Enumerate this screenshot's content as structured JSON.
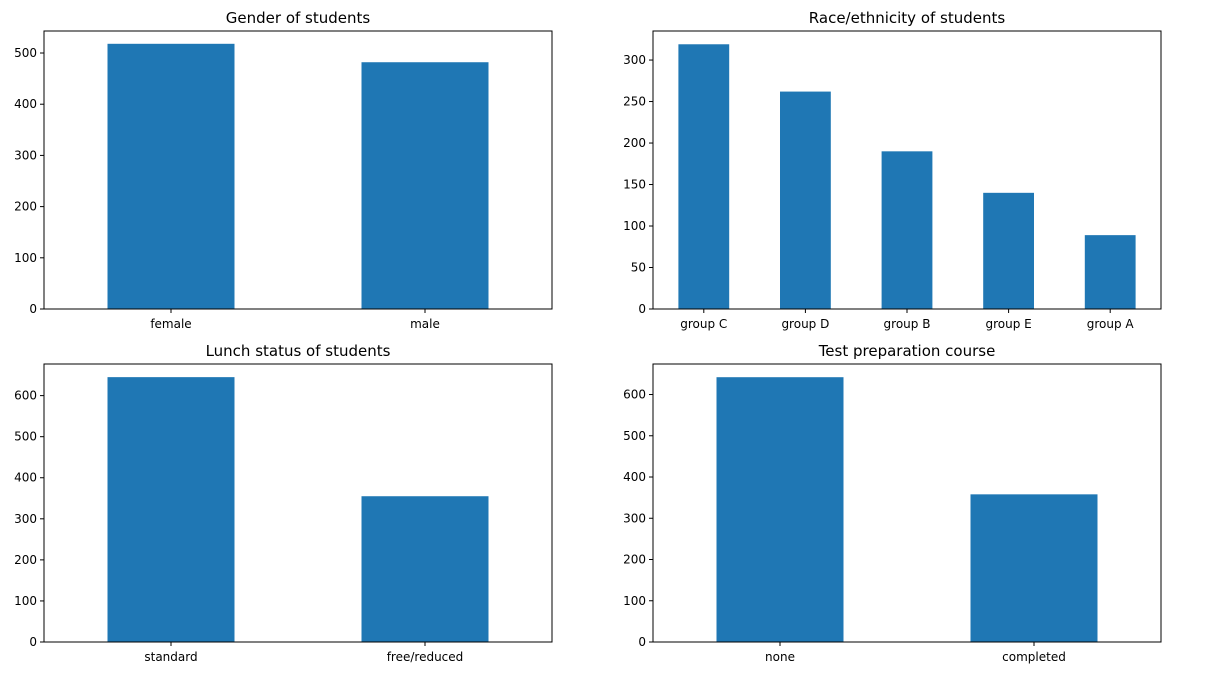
{
  "bar_color": "#1f77b4",
  "chart_data": [
    {
      "type": "bar",
      "title": "Gender of students",
      "categories": [
        "female",
        "male"
      ],
      "values": [
        518,
        482
      ],
      "ylim": [
        0,
        543
      ],
      "yticks": [
        0,
        100,
        200,
        300,
        400,
        500
      ],
      "grid": false
    },
    {
      "type": "bar",
      "title": "Race/ethnicity of students",
      "categories": [
        "group C",
        "group D",
        "group B",
        "group E",
        "group A"
      ],
      "values": [
        319,
        262,
        190,
        140,
        89
      ],
      "ylim": [
        0,
        335
      ],
      "yticks": [
        0,
        50,
        100,
        150,
        200,
        250,
        300
      ],
      "grid": false
    },
    {
      "type": "bar",
      "title": "Lunch status of students",
      "categories": [
        "standard",
        "free/reduced"
      ],
      "values": [
        645,
        355
      ],
      "ylim": [
        0,
        677
      ],
      "yticks": [
        0,
        100,
        200,
        300,
        400,
        500,
        600
      ],
      "grid": false
    },
    {
      "type": "bar",
      "title": "Test preparation course",
      "categories": [
        "none",
        "completed"
      ],
      "values": [
        642,
        358
      ],
      "ylim": [
        0,
        674
      ],
      "yticks": [
        0,
        100,
        200,
        300,
        400,
        500,
        600
      ],
      "grid": false
    }
  ]
}
